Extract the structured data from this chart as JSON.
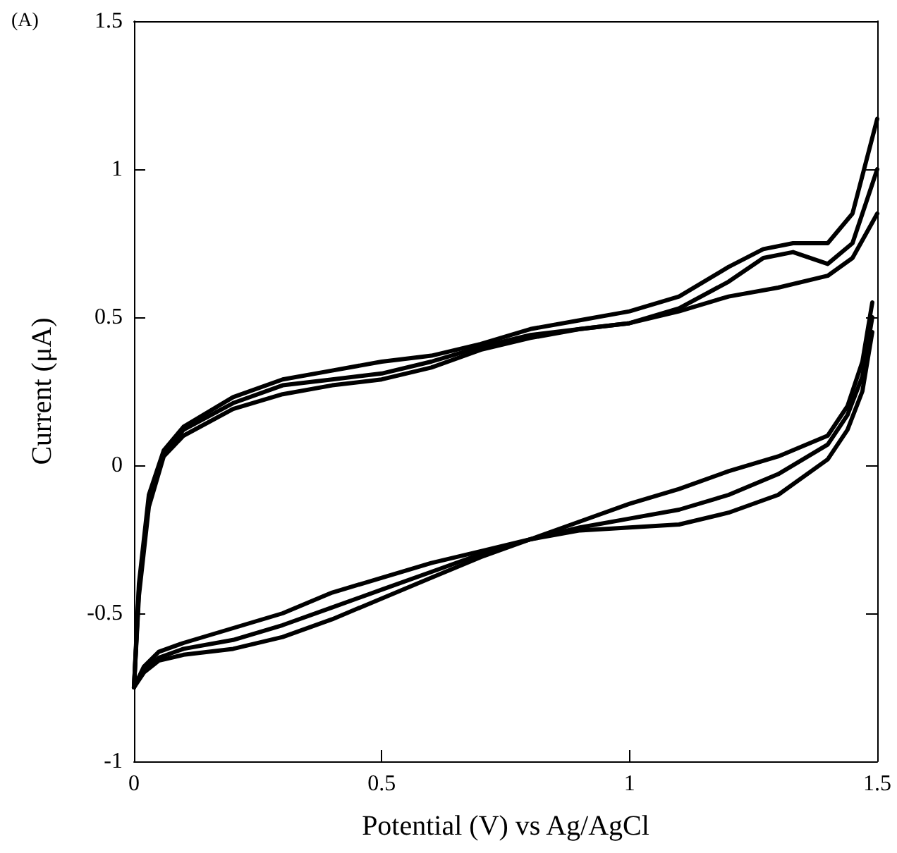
{
  "chart_data": {
    "type": "line",
    "xlabel": "Potential (V) vs Ag/AgCl",
    "ylabel": "Current (μA)",
    "annotations": [
      "(A)"
    ],
    "xlim": [
      0,
      1.5
    ],
    "xticks": [
      0,
      0.5,
      1,
      1.5
    ],
    "ylim": [
      -1,
      1.5
    ],
    "yticks": [
      -1,
      -0.5,
      0,
      0.5,
      1,
      1.5
    ],
    "grid": false,
    "marker": "none",
    "line_style": "solid",
    "series": [
      {
        "color": "#000000",
        "x": [
          0,
          0.01,
          0.03,
          0.06,
          0.1,
          0.2,
          0.3,
          0.4,
          0.5,
          0.6,
          0.7,
          0.8,
          0.9,
          1.0,
          1.1,
          1.2,
          1.27,
          1.33,
          1.4,
          1.45,
          1.5
        ],
        "values": [
          -0.75,
          -0.4,
          -0.1,
          0.05,
          0.13,
          0.23,
          0.29,
          0.32,
          0.35,
          0.37,
          0.41,
          0.46,
          0.49,
          0.52,
          0.57,
          0.67,
          0.73,
          0.75,
          0.75,
          0.85,
          1.17
        ]
      },
      {
        "color": "#000000",
        "x": [
          0,
          0.01,
          0.03,
          0.06,
          0.1,
          0.2,
          0.3,
          0.4,
          0.5,
          0.6,
          0.7,
          0.8,
          0.9,
          1.0,
          1.1,
          1.2,
          1.27,
          1.33,
          1.4,
          1.45,
          1.5
        ],
        "values": [
          -0.75,
          -0.42,
          -0.12,
          0.04,
          0.12,
          0.21,
          0.27,
          0.29,
          0.31,
          0.35,
          0.4,
          0.44,
          0.46,
          0.48,
          0.53,
          0.62,
          0.7,
          0.72,
          0.68,
          0.75,
          1.0
        ]
      },
      {
        "color": "#000000",
        "x": [
          0,
          0.01,
          0.03,
          0.06,
          0.1,
          0.2,
          0.3,
          0.4,
          0.5,
          0.6,
          0.7,
          0.8,
          0.9,
          1.0,
          1.1,
          1.2,
          1.3,
          1.4,
          1.45,
          1.5
        ],
        "values": [
          -0.75,
          -0.44,
          -0.14,
          0.03,
          0.1,
          0.19,
          0.24,
          0.27,
          0.29,
          0.33,
          0.39,
          0.43,
          0.46,
          0.48,
          0.52,
          0.57,
          0.6,
          0.64,
          0.7,
          0.85
        ]
      },
      {
        "color": "#000000",
        "x": [
          0,
          0.02,
          0.05,
          0.1,
          0.2,
          0.3,
          0.4,
          0.5,
          0.6,
          0.7,
          0.8,
          0.9,
          1.0,
          1.1,
          1.2,
          1.3,
          1.4,
          1.44,
          1.47,
          1.49
        ],
        "values": [
          -0.75,
          -0.7,
          -0.66,
          -0.64,
          -0.62,
          -0.58,
          -0.52,
          -0.45,
          -0.38,
          -0.31,
          -0.25,
          -0.19,
          -0.13,
          -0.08,
          -0.02,
          0.03,
          0.1,
          0.2,
          0.35,
          0.55
        ]
      },
      {
        "color": "#000000",
        "x": [
          0,
          0.02,
          0.05,
          0.1,
          0.2,
          0.3,
          0.4,
          0.5,
          0.6,
          0.7,
          0.8,
          0.9,
          1.0,
          1.1,
          1.2,
          1.3,
          1.4,
          1.44,
          1.47,
          1.49
        ],
        "values": [
          -0.75,
          -0.69,
          -0.65,
          -0.62,
          -0.59,
          -0.54,
          -0.48,
          -0.42,
          -0.36,
          -0.3,
          -0.25,
          -0.21,
          -0.18,
          -0.15,
          -0.1,
          -0.03,
          0.07,
          0.17,
          0.3,
          0.5
        ]
      },
      {
        "color": "#000000",
        "x": [
          0,
          0.02,
          0.05,
          0.1,
          0.2,
          0.3,
          0.4,
          0.5,
          0.6,
          0.7,
          0.8,
          0.9,
          1.0,
          1.1,
          1.2,
          1.3,
          1.4,
          1.44,
          1.47,
          1.49
        ],
        "values": [
          -0.75,
          -0.68,
          -0.63,
          -0.6,
          -0.55,
          -0.5,
          -0.43,
          -0.38,
          -0.33,
          -0.29,
          -0.25,
          -0.22,
          -0.21,
          -0.2,
          -0.16,
          -0.1,
          0.02,
          0.12,
          0.25,
          0.45
        ]
      }
    ]
  }
}
